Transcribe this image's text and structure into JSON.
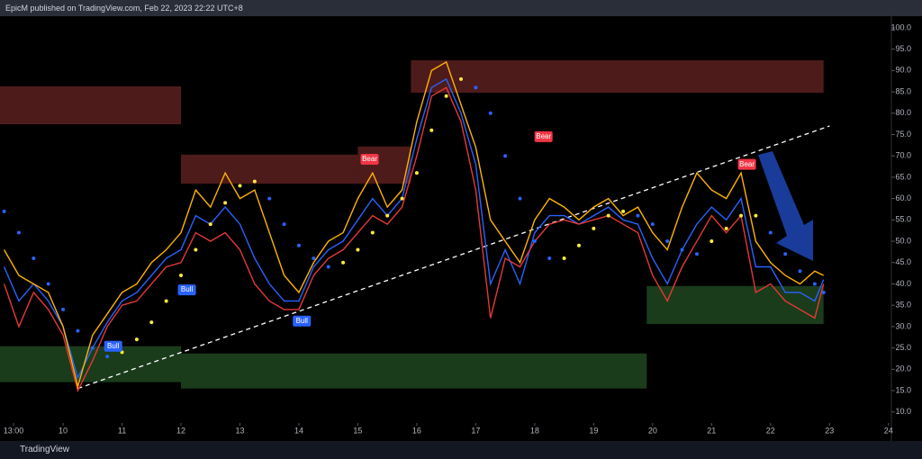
{
  "header": "EpicM published on TradingView.com, Feb 22, 2023 22:22 UTC+8",
  "footer": "TradingView",
  "chart_data": {
    "type": "line",
    "xlim": [
      8.93,
      24.05
    ],
    "ylim": [
      3.2,
      102.3
    ],
    "xticks": [
      {
        "value": 9.16,
        "label": "13:00"
      },
      10,
      11,
      12,
      13,
      14,
      15,
      16,
      17,
      18,
      19,
      20,
      21,
      22,
      23,
      24
    ],
    "yticks": [
      {
        "value": 10,
        "label": "10.0"
      },
      {
        "value": 15,
        "label": "15.0"
      },
      {
        "value": 20,
        "label": "20.0"
      },
      {
        "value": 25,
        "label": "25.0"
      },
      {
        "value": 30,
        "label": "30.0"
      },
      {
        "value": 35,
        "label": "35.0"
      },
      {
        "value": 40,
        "label": "40.0"
      },
      {
        "value": 45,
        "label": "45.0"
      },
      {
        "value": 50,
        "label": "50.0"
      },
      {
        "value": 55,
        "label": "55.0"
      },
      {
        "value": 60,
        "label": "60.0"
      },
      {
        "value": 65,
        "label": "65.0"
      },
      {
        "value": 70,
        "label": "70.0"
      },
      {
        "value": 75,
        "label": "75.0"
      },
      {
        "value": 80,
        "label": "80.0"
      },
      {
        "value": 85,
        "label": "85.0"
      },
      {
        "value": 90,
        "label": "90.0"
      },
      {
        "value": 95,
        "label": "95.0"
      },
      {
        "value": 100,
        "label": "100.0"
      }
    ],
    "x": [
      9.0,
      9.25,
      9.5,
      9.75,
      10.0,
      10.25,
      10.5,
      10.75,
      11.0,
      11.25,
      11.5,
      11.75,
      12.0,
      12.25,
      12.5,
      12.75,
      13.0,
      13.25,
      13.5,
      13.75,
      14.0,
      14.25,
      14.5,
      14.75,
      15.0,
      15.25,
      15.5,
      15.75,
      16.0,
      16.25,
      16.5,
      16.75,
      17.0,
      17.25,
      17.5,
      17.75,
      18.0,
      18.25,
      18.5,
      18.75,
      19.0,
      19.25,
      19.5,
      19.75,
      20.0,
      20.25,
      20.5,
      20.75,
      21.0,
      21.25,
      21.5,
      21.75,
      22.0,
      22.25,
      22.5,
      22.75,
      22.9
    ],
    "series": [
      {
        "color": "#2962ff",
        "values": [
          44,
          36,
          40,
          36,
          30,
          18,
          25,
          31,
          36,
          38,
          42,
          46,
          48,
          56,
          54,
          58,
          54,
          46,
          40,
          36,
          36,
          44,
          48,
          50,
          55,
          60,
          56,
          60,
          74,
          86,
          88,
          80,
          68,
          40,
          48,
          40,
          52,
          56,
          56,
          54,
          56,
          58,
          55,
          54,
          46,
          40,
          48,
          54,
          58,
          55,
          60,
          44,
          44,
          38,
          38,
          36,
          41
        ]
      },
      {
        "color": "#e53935",
        "values": [
          40,
          30,
          38,
          34,
          28,
          15,
          22,
          30,
          35,
          36,
          40,
          44,
          45,
          52,
          50,
          52,
          48,
          40,
          36,
          34,
          34,
          42,
          46,
          48,
          52,
          56,
          54,
          58,
          70,
          84,
          86,
          78,
          62,
          32,
          46,
          44,
          50,
          54,
          55,
          54,
          55,
          56,
          54,
          52,
          42,
          36,
          44,
          50,
          56,
          52,
          56,
          38,
          40,
          36,
          34,
          32,
          40
        ]
      },
      {
        "color": "#ffb300",
        "values": [
          48,
          42,
          40,
          38,
          30,
          16,
          28,
          33,
          38,
          40,
          45,
          48,
          52,
          62,
          58,
          66,
          60,
          62,
          52,
          42,
          38,
          45,
          50,
          52,
          60,
          66,
          58,
          62,
          78,
          90,
          92,
          82,
          72,
          55,
          50,
          45,
          55,
          60,
          58,
          55,
          58,
          60,
          56,
          58,
          52,
          48,
          58,
          66,
          62,
          60,
          66,
          50,
          45,
          42,
          40,
          43,
          42
        ]
      }
    ],
    "signal": {
      "color_up": "#ffeb3b",
      "color_down": "#2962ff",
      "values": [
        57,
        52,
        46,
        40,
        34,
        29,
        25,
        23,
        24,
        27,
        31,
        36,
        42,
        48,
        54,
        59,
        63,
        64,
        60,
        54,
        49,
        46,
        44,
        45,
        48,
        52,
        56,
        60,
        66,
        76,
        84,
        88,
        86,
        80,
        70,
        60,
        50,
        46,
        46,
        49,
        53,
        56,
        57,
        56,
        54,
        50,
        48,
        47,
        50,
        53,
        56,
        56,
        52,
        47,
        43,
        40,
        38
      ]
    },
    "zones": [
      {
        "color": "#5c2020",
        "x": [
          8.93,
          12.0
        ],
        "lower": 77.4,
        "upper": 86.3
      },
      {
        "color": "#5c2020",
        "x": [
          12.0,
          15.0
        ],
        "lower": 63.5,
        "upper": 70.3
      },
      {
        "color": "#5c2020",
        "x": [
          15.0,
          15.9
        ],
        "lower": 63.5,
        "upper": 72.2
      },
      {
        "color": "#5c2020",
        "x": [
          15.9,
          22.9
        ],
        "lower": 84.8,
        "upper": 92.4
      },
      {
        "color": "#1e4620",
        "x": [
          8.93,
          12.0
        ],
        "lower": 17.0,
        "upper": 25.4
      },
      {
        "color": "#1e4620",
        "x": [
          12.0,
          19.9
        ],
        "lower": 15.5,
        "upper": 23.7
      },
      {
        "color": "#1e4620",
        "x": [
          19.9,
          22.9
        ],
        "lower": 30.6,
        "upper": 39.5
      }
    ],
    "trendline": {
      "color": "#ffffff",
      "x": [
        10.25,
        23.0
      ],
      "y": [
        15.5,
        77.0
      ]
    },
    "annotations": [
      {
        "text": "Bull",
        "color": "#2962ff",
        "x": 10.85,
        "y": 25.4
      },
      {
        "text": "Bull",
        "color": "#2962ff",
        "x": 12.1,
        "y": 38.6
      },
      {
        "text": "Bull",
        "color": "#2962ff",
        "x": 14.05,
        "y": 31.3
      },
      {
        "text": "Bear",
        "color": "#f23645",
        "x": 15.2,
        "y": 69.2
      },
      {
        "text": "Bear",
        "color": "#f23645",
        "x": 18.15,
        "y": 74.5
      },
      {
        "text": "Bear",
        "color": "#f23645",
        "x": 21.6,
        "y": 68.0
      }
    ]
  }
}
